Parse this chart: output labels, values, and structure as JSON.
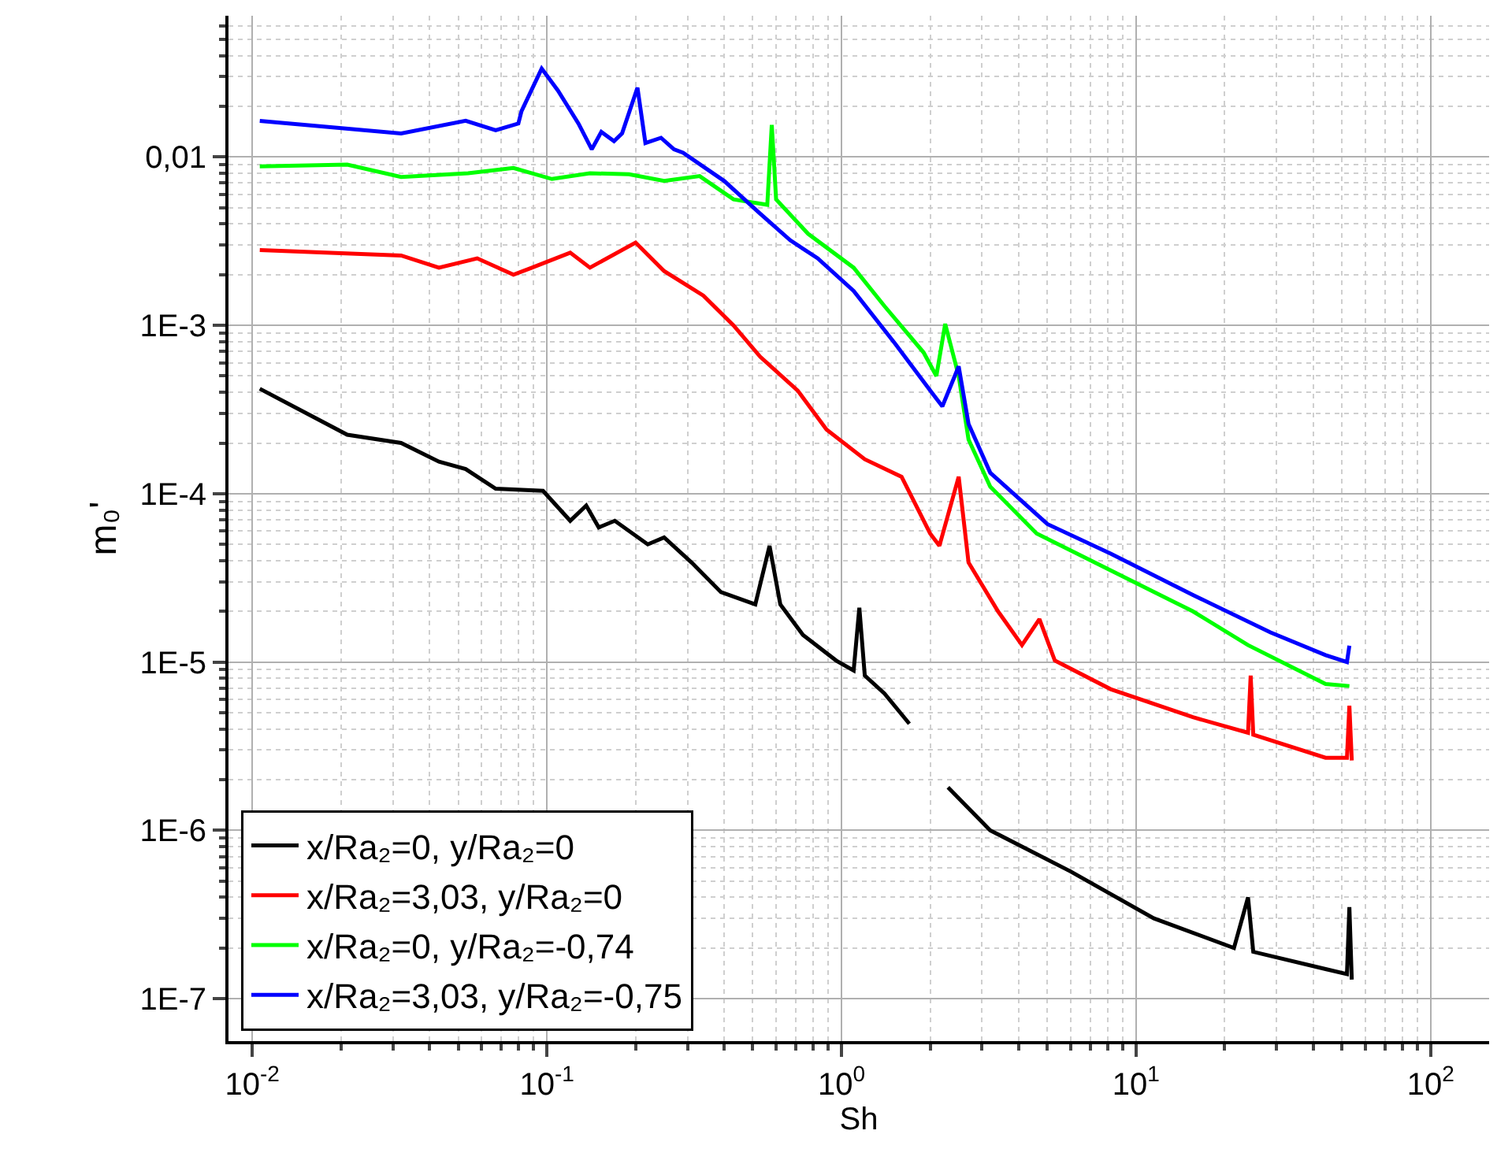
{
  "chart_data": {
    "type": "line",
    "xlabel": "Sh",
    "ylabel": "m₀'",
    "log": "xy",
    "grid": true,
    "legend": "bottom left",
    "line_style": "solid",
    "marker": "none",
    "xlim": [
      0.0083,
      158
    ],
    "ylim": [
      5.6e-08,
      0.069
    ],
    "xticks": [
      {
        "value": 0.01,
        "label": "10$^{-2}$"
      },
      {
        "value": 0.1,
        "label": "10$^{-1}$"
      },
      {
        "value": 1,
        "label": "10$^{0}$"
      },
      {
        "value": 10,
        "label": "10$^{1}$"
      },
      {
        "value": 100,
        "label": "10$^{2}$"
      }
    ],
    "yticks": [
      {
        "value": 1e-07,
        "label": "1E-7"
      },
      {
        "value": 1e-06,
        "label": "1E-6"
      },
      {
        "value": 1e-05,
        "label": "1E-5"
      },
      {
        "value": 0.0001,
        "label": "1E-4"
      },
      {
        "value": 0.001,
        "label": "1E-3"
      },
      {
        "value": 0.01,
        "label": "0,01"
      }
    ],
    "series": [
      {
        "name": "x/Ra₂=0, y/Ra₂=0",
        "color": "#000000",
        "x": [
          0.0106,
          0.021,
          0.032,
          0.043,
          0.053,
          0.067,
          0.097,
          0.12,
          0.136,
          0.15,
          0.17,
          0.22,
          0.25,
          0.31,
          0.39,
          0.51,
          0.57,
          0.62,
          0.74,
          0.96,
          1.1,
          1.15,
          1.2,
          1.4,
          1.7,
          1.9,
          2.3,
          3.2,
          6.0,
          11.5,
          21.5,
          24,
          25,
          44,
          52,
          53,
          54
        ],
        "values": [
          0.00042,
          0.000224,
          0.0002,
          0.000155,
          0.00014,
          0.000107,
          0.000104,
          6.9e-05,
          8.5e-05,
          6.3e-05,
          6.9e-05,
          5e-05,
          5.5e-05,
          3.9e-05,
          2.6e-05,
          2.2e-05,
          4.9e-05,
          2.2e-05,
          1.45e-05,
          1.02e-05,
          8.9e-06,
          2.1e-05,
          8.3e-06,
          6.5e-06,
          4.3e-06,
          null,
          1.8e-06,
          1e-06,
          5.7e-07,
          3e-07,
          2e-07,
          4e-07,
          1.9e-07,
          1.5e-07,
          1.4e-07,
          3.5e-07,
          1.3e-07
        ]
      },
      {
        "name": "x/Ra₂=3,03, y/Ra₂=0",
        "color": "#ff0000",
        "x": [
          0.0106,
          0.032,
          0.043,
          0.058,
          0.077,
          0.089,
          0.12,
          0.14,
          0.2,
          0.25,
          0.34,
          0.43,
          0.53,
          0.71,
          0.89,
          1.2,
          1.6,
          2.0,
          2.15,
          2.5,
          2.7,
          3.4,
          4.1,
          4.7,
          5.3,
          8.2,
          15.6,
          24,
          24.5,
          25,
          44,
          52,
          53,
          54
        ],
        "values": [
          0.0028,
          0.0026,
          0.0022,
          0.0025,
          0.002,
          0.0022,
          0.0027,
          0.0022,
          0.0031,
          0.0021,
          0.0015,
          0.001,
          0.00065,
          0.00041,
          0.00024,
          0.00016,
          0.000126,
          5.8e-05,
          4.9e-05,
          0.000126,
          3.9e-05,
          2e-05,
          1.26e-05,
          1.8e-05,
          1.02e-05,
          6.9e-06,
          4.7e-06,
          3.8e-06,
          8.3e-06,
          3.7e-06,
          2.7e-06,
          2.7e-06,
          5.5e-06,
          2.6e-06
        ]
      },
      {
        "name": "x/Ra₂=0, y/Ra₂=-0,74",
        "color": "#00ff00",
        "x": [
          0.0106,
          0.021,
          0.032,
          0.054,
          0.077,
          0.104,
          0.14,
          0.19,
          0.25,
          0.33,
          0.43,
          0.56,
          0.58,
          0.6,
          0.77,
          1.1,
          1.4,
          1.9,
          2.1,
          2.25,
          2.5,
          2.7,
          3.2,
          4.6,
          8.2,
          15.6,
          24,
          44,
          53
        ],
        "values": [
          0.0088,
          0.009,
          0.0076,
          0.008,
          0.0086,
          0.0074,
          0.008,
          0.0079,
          0.0072,
          0.0077,
          0.0056,
          0.0052,
          0.0155,
          0.0056,
          0.0035,
          0.0022,
          0.0013,
          0.00069,
          0.0005,
          0.00102,
          0.0005,
          0.00021,
          0.00011,
          5.8e-05,
          3.5e-05,
          2e-05,
          1.26e-05,
          7.4e-06,
          7.2e-06
        ]
      },
      {
        "name": "x/Ra₂=3,03, y/Ra₂=-0,75",
        "color": "#0000ff",
        "x": [
          0.0106,
          0.032,
          0.053,
          0.067,
          0.08,
          0.082,
          0.096,
          0.109,
          0.128,
          0.142,
          0.153,
          0.169,
          0.18,
          0.203,
          0.216,
          0.244,
          0.27,
          0.29,
          0.4,
          0.53,
          0.67,
          0.83,
          1.1,
          1.52,
          2.0,
          2.2,
          2.5,
          2.7,
          3.2,
          5.0,
          8.2,
          15.6,
          28.6,
          44,
          52,
          53
        ],
        "values": [
          0.0164,
          0.0138,
          0.0164,
          0.0144,
          0.0158,
          0.0187,
          0.0335,
          0.0248,
          0.0158,
          0.0111,
          0.0141,
          0.0124,
          0.0138,
          0.0258,
          0.0121,
          0.013,
          0.0111,
          0.0106,
          0.0072,
          0.0046,
          0.0032,
          0.0025,
          0.0016,
          0.00078,
          0.00041,
          0.00033,
          0.00057,
          0.00026,
          0.000133,
          6.6e-05,
          4.4e-05,
          2.5e-05,
          1.5e-05,
          1.1e-05,
          1e-05,
          1.25e-05
        ]
      }
    ]
  }
}
